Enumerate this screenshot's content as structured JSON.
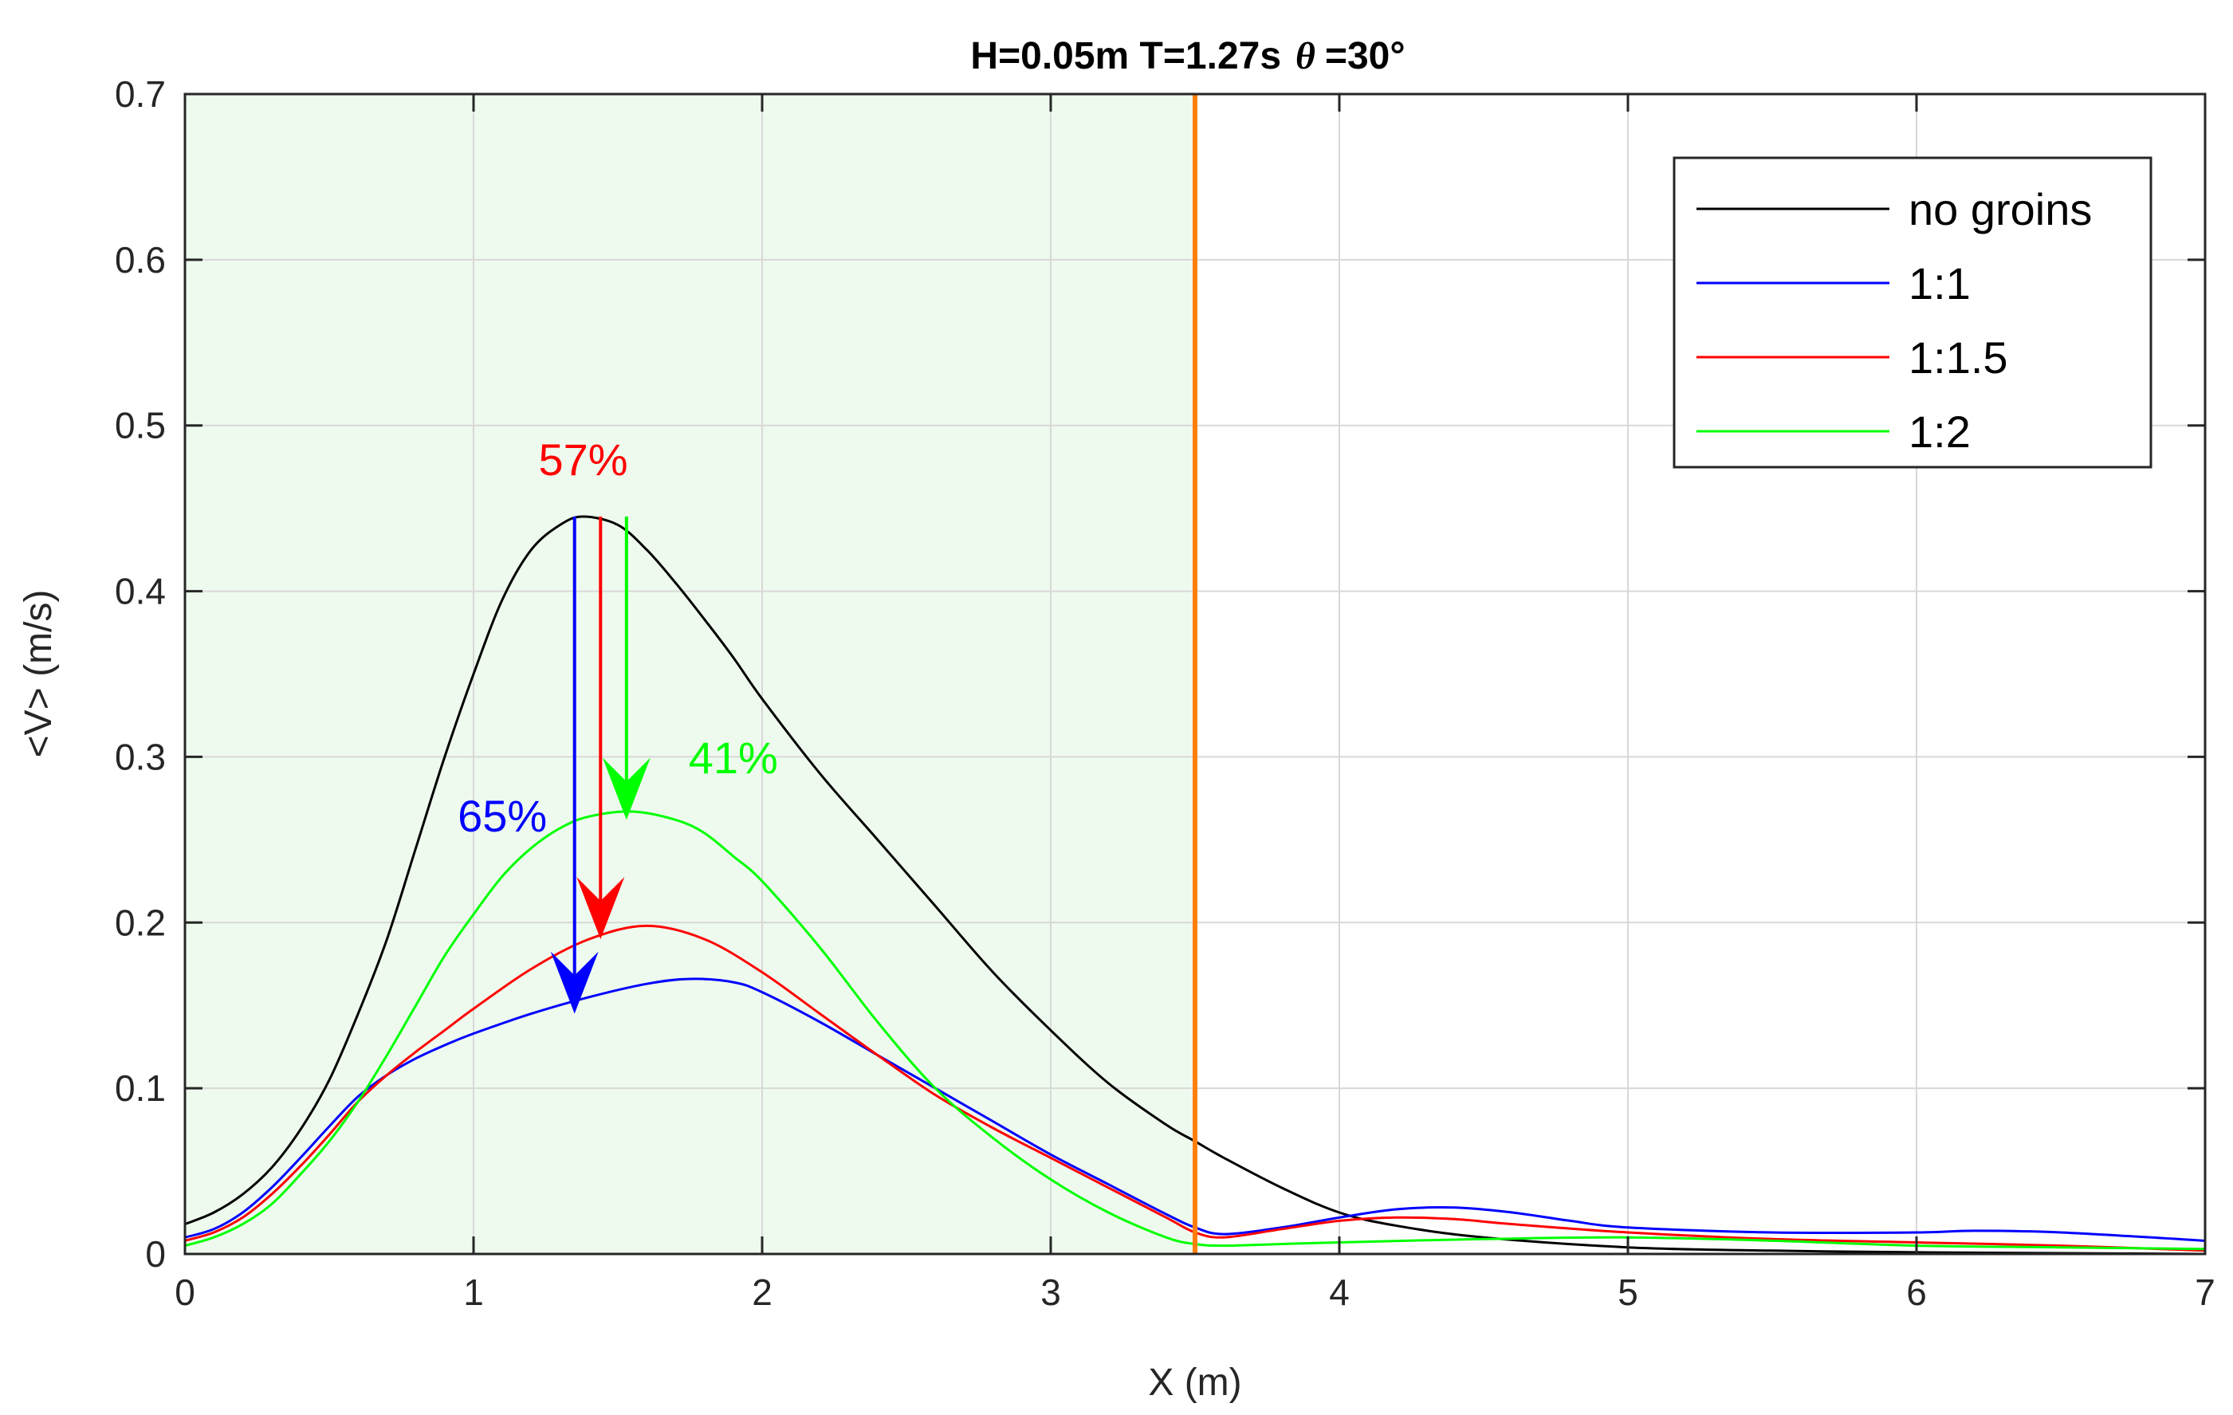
{
  "chart_data": {
    "type": "line",
    "title": {
      "main": "H=0.05m T=1.27s",
      "theta_symbol": "θ",
      "theta_value": "=30°"
    },
    "xlabel": "X (m)",
    "ylabel": "<V> (m/s)",
    "xlim": [
      0,
      7
    ],
    "ylim": [
      0,
      0.7
    ],
    "xticks": [
      0,
      1,
      2,
      3,
      4,
      5,
      6,
      7
    ],
    "yticks": [
      0,
      0.1,
      0.2,
      0.3,
      0.4,
      0.5,
      0.6,
      0.7
    ],
    "xtick_labels": [
      "0",
      "1",
      "2",
      "3",
      "4",
      "5",
      "6",
      "7"
    ],
    "ytick_labels": [
      "0",
      "0.1",
      "0.2",
      "0.3",
      "0.4",
      "0.5",
      "0.6",
      "0.7"
    ],
    "grid": true,
    "legend_position": "top-right",
    "shaded_region": {
      "x_start": 0,
      "x_end": 3.5,
      "color": "#eefaee"
    },
    "vertical_line": {
      "x": 3.5,
      "color": "#ff7f0e"
    },
    "series": [
      {
        "name": "no groins",
        "color": "#000000",
        "x": [
          0,
          0.1,
          0.2,
          0.3,
          0.4,
          0.5,
          0.6,
          0.7,
          0.8,
          0.9,
          1.0,
          1.1,
          1.2,
          1.3,
          1.38,
          1.5,
          1.6,
          1.7,
          1.8,
          1.9,
          2.0,
          2.2,
          2.4,
          2.6,
          2.8,
          3.0,
          3.2,
          3.4,
          3.5,
          3.6,
          3.8,
          4.0,
          4.2,
          4.5,
          5.0,
          5.5,
          6.0,
          6.5,
          7.0
        ],
        "y": [
          0.018,
          0.025,
          0.036,
          0.052,
          0.075,
          0.105,
          0.145,
          0.19,
          0.245,
          0.3,
          0.35,
          0.395,
          0.425,
          0.44,
          0.445,
          0.44,
          0.425,
          0.405,
          0.383,
          0.36,
          0.335,
          0.29,
          0.25,
          0.21,
          0.17,
          0.135,
          0.103,
          0.078,
          0.068,
          0.058,
          0.04,
          0.025,
          0.017,
          0.01,
          0.004,
          0.002,
          0.001,
          0.0005,
          0.0
        ]
      },
      {
        "name": "1:1",
        "color": "#0000ff",
        "x": [
          0,
          0.1,
          0.2,
          0.3,
          0.4,
          0.5,
          0.6,
          0.7,
          0.8,
          0.9,
          1.0,
          1.2,
          1.4,
          1.6,
          1.75,
          1.9,
          2.0,
          2.2,
          2.4,
          2.6,
          2.8,
          3.0,
          3.2,
          3.4,
          3.5,
          3.6,
          3.8,
          4.0,
          4.2,
          4.4,
          4.6,
          4.8,
          5.0,
          5.5,
          6.0,
          6.2,
          6.5,
          7.0
        ],
        "y": [
          0.01,
          0.015,
          0.025,
          0.04,
          0.058,
          0.077,
          0.095,
          0.108,
          0.118,
          0.126,
          0.133,
          0.145,
          0.155,
          0.163,
          0.166,
          0.164,
          0.158,
          0.14,
          0.12,
          0.1,
          0.08,
          0.06,
          0.042,
          0.024,
          0.016,
          0.012,
          0.016,
          0.022,
          0.027,
          0.028,
          0.025,
          0.02,
          0.016,
          0.013,
          0.013,
          0.014,
          0.013,
          0.008
        ]
      },
      {
        "name": "1:1.5",
        "color": "#ff0000",
        "x": [
          0,
          0.1,
          0.2,
          0.3,
          0.4,
          0.5,
          0.6,
          0.7,
          0.8,
          0.9,
          1.0,
          1.2,
          1.4,
          1.6,
          1.8,
          2.0,
          2.2,
          2.4,
          2.6,
          2.8,
          3.0,
          3.2,
          3.4,
          3.5,
          3.6,
          3.8,
          4.0,
          4.2,
          4.4,
          4.6,
          5.0,
          5.5,
          6.0,
          6.5,
          7.0
        ],
        "y": [
          0.008,
          0.013,
          0.022,
          0.036,
          0.053,
          0.072,
          0.092,
          0.108,
          0.122,
          0.135,
          0.148,
          0.172,
          0.19,
          0.198,
          0.19,
          0.17,
          0.145,
          0.12,
          0.096,
          0.076,
          0.058,
          0.04,
          0.022,
          0.013,
          0.01,
          0.015,
          0.02,
          0.022,
          0.021,
          0.018,
          0.013,
          0.009,
          0.007,
          0.005,
          0.002
        ]
      },
      {
        "name": "1:2",
        "color": "#00ff00",
        "x": [
          0,
          0.1,
          0.2,
          0.3,
          0.4,
          0.5,
          0.6,
          0.7,
          0.8,
          0.9,
          1.0,
          1.1,
          1.2,
          1.3,
          1.4,
          1.55,
          1.7,
          1.8,
          1.9,
          2.0,
          2.2,
          2.4,
          2.6,
          2.8,
          3.0,
          3.2,
          3.4,
          3.5,
          3.6,
          3.8,
          4.0,
          4.5,
          5.0,
          5.5,
          6.0,
          6.5,
          7.0
        ],
        "y": [
          0.005,
          0.01,
          0.018,
          0.03,
          0.048,
          0.068,
          0.092,
          0.12,
          0.15,
          0.18,
          0.205,
          0.228,
          0.245,
          0.257,
          0.264,
          0.267,
          0.262,
          0.254,
          0.24,
          0.225,
          0.185,
          0.14,
          0.1,
          0.07,
          0.045,
          0.025,
          0.01,
          0.006,
          0.005,
          0.006,
          0.007,
          0.009,
          0.01,
          0.008,
          0.005,
          0.004,
          0.003
        ]
      }
    ],
    "annotations": [
      {
        "text": "65%",
        "color": "#0000ff",
        "arrow_x": 1.35,
        "arrow_from": 0.445,
        "arrow_to": 0.145,
        "label_x": 1.1,
        "label_y": 0.255
      },
      {
        "text": "57%",
        "color": "#ff0000",
        "arrow_x": 1.44,
        "arrow_from": 0.445,
        "arrow_to": 0.19,
        "label_x": 1.38,
        "label_y": 0.47
      },
      {
        "text": "41%",
        "color": "#00ff00",
        "arrow_x": 1.53,
        "arrow_from": 0.445,
        "arrow_to": 0.262,
        "label_x": 1.9,
        "label_y": 0.29
      }
    ]
  }
}
